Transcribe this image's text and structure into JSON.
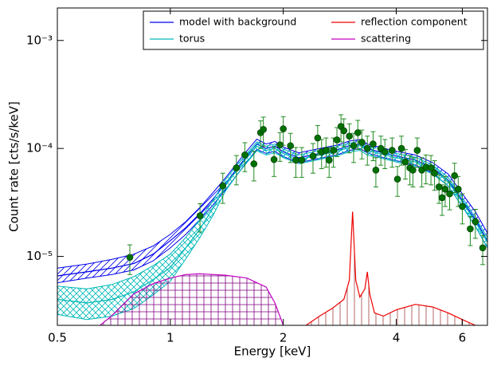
{
  "chart_data": {
    "type": "line",
    "xlabel": "Energy [keV]",
    "ylabel": "Count rate [cts/s/keV]",
    "xscale": "log",
    "yscale": "log",
    "xlim": [
      0.5,
      7
    ],
    "ylim": [
      2.3e-06,
      0.002
    ],
    "xticks": [
      0.5,
      1,
      2,
      4,
      6
    ],
    "yticks": [
      {
        "value": 1e-05,
        "label": "10⁻⁵"
      },
      {
        "value": 0.0001,
        "label": "10⁻⁴"
      },
      {
        "value": 0.001,
        "label": "10⁻³"
      }
    ],
    "legend": "upper right",
    "series": [
      {
        "name": "model with background",
        "color": "#0000ee",
        "hatch": "diagonal",
        "x": [
          0.5,
          0.6,
          0.7,
          0.8,
          0.9,
          1.0,
          1.1,
          1.2,
          1.3,
          1.4,
          1.5,
          1.6,
          1.7,
          1.8,
          1.9,
          2.0,
          2.2,
          2.5,
          2.8,
          3.0,
          3.2,
          3.35,
          3.6,
          4.0,
          4.5,
          5.0,
          5.5,
          6.0,
          6.5,
          7.0
        ],
        "values": [
          6.6e-06,
          7.2e-06,
          7.8e-06,
          8.6e-06,
          1.05e-05,
          1.4e-05,
          1.85e-05,
          2.5e-05,
          3.4e-05,
          4.7e-05,
          6.4e-05,
          8.5e-05,
          0.00011,
          0.0001,
          0.000105,
          9.3e-05,
          8.2e-05,
          9e-05,
          9.8e-05,
          0.000106,
          0.00011,
          0.0001,
          9.3e-05,
          8.5e-05,
          7.8e-05,
          6.6e-05,
          5.1e-05,
          3.3e-05,
          2.2e-05,
          1.4e-05
        ],
        "lower": [
          5.7e-06,
          6.3e-06,
          6.8e-06,
          7.5e-06,
          9.1e-06,
          1.2e-05,
          1.6e-05,
          2.2e-05,
          3e-05,
          4.1e-05,
          5.6e-05,
          7.5e-05,
          9.8e-05,
          9e-05,
          9.4e-05,
          8.4e-05,
          7.4e-05,
          8.1e-05,
          8.8e-05,
          9.6e-05,
          0.0001,
          9.1e-05,
          8.4e-05,
          7.7e-05,
          7e-05,
          5.9e-05,
          4.5e-05,
          2.9e-05,
          1.9e-05,
          1.2e-05
        ],
        "upper": [
          7.8e-06,
          8.5e-06,
          9.4e-06,
          1.05e-05,
          1.25e-05,
          1.6e-05,
          2.1e-05,
          2.85e-05,
          3.9e-05,
          5.3e-05,
          7.2e-05,
          9.5e-05,
          0.000122,
          0.00011,
          0.000116,
          0.000103,
          9.1e-05,
          0.0001,
          0.000108,
          0.000117,
          0.000121,
          0.00011,
          0.000103,
          9.4e-05,
          8.7e-05,
          7.4e-05,
          5.8e-05,
          3.8e-05,
          2.6e-05,
          1.65e-05
        ]
      },
      {
        "name": "torus",
        "color": "#00b8b8",
        "hatch": "cross",
        "x": [
          0.5,
          0.6,
          0.7,
          0.8,
          0.9,
          1.0,
          1.1,
          1.2,
          1.3,
          1.4,
          1.5,
          1.6,
          1.7,
          1.8,
          1.9,
          2.0,
          2.2,
          2.5,
          2.8,
          3.0,
          3.2,
          3.35,
          3.6,
          4.0,
          4.5,
          5.0,
          5.5,
          6.0,
          6.5,
          7.0
        ],
        "values": [
          4e-06,
          3.7e-06,
          4e-06,
          4.7e-06,
          6.1e-06,
          7.9e-06,
          1.2e-05,
          1.8e-05,
          2.8e-05,
          4.5e-05,
          6.2e-05,
          8.2e-05,
          0.000105,
          9.6e-05,
          0.0001,
          9e-05,
          7.9e-05,
          8.7e-05,
          9.5e-05,
          0.000102,
          0.000106,
          9.6e-05,
          9e-05,
          8.2e-05,
          7.5e-05,
          6.4e-05,
          4.9e-05,
          3.2e-05,
          2.1e-05,
          1.35e-05
        ],
        "lower": [
          2.9e-06,
          2.6e-06,
          2.8e-06,
          3.3e-06,
          4.4e-06,
          5.9e-06,
          9.5e-06,
          1.5e-05,
          2.4e-05,
          4e-05,
          5.6e-05,
          7.4e-05,
          9.5e-05,
          8.7e-05,
          9.1e-05,
          8.2e-05,
          7.2e-05,
          7.9e-05,
          8.6e-05,
          9.3e-05,
          9.6e-05,
          8.7e-05,
          8.2e-05,
          7.5e-05,
          6.8e-05,
          5.8e-05,
          4.5e-05,
          2.9e-05,
          1.9e-05,
          1.2e-05
        ],
        "upper": [
          5.3e-06,
          5e-06,
          5.5e-06,
          6.5e-06,
          8.2e-06,
          1.05e-05,
          1.5e-05,
          2.2e-05,
          3.3e-05,
          5.1e-05,
          6.9e-05,
          9e-05,
          0.000115,
          0.000105,
          0.00011,
          9.9e-05,
          8.7e-05,
          9.6e-05,
          0.000105,
          0.000112,
          0.000116,
          0.000105,
          9.9e-05,
          9e-05,
          8.3e-05,
          7e-05,
          5.4e-05,
          3.5e-05,
          2.3e-05,
          1.5e-05
        ]
      },
      {
        "name": "reflection component",
        "color": "#ee0000",
        "hatch": "vertical",
        "x": [
          2.3,
          2.5,
          2.7,
          2.9,
          3.0,
          3.06,
          3.12,
          3.2,
          3.3,
          3.35,
          3.4,
          3.5,
          3.7,
          4.0,
          4.5,
          5.0,
          5.5,
          6.0,
          6.5
        ],
        "values": [
          2.3e-06,
          2.8e-06,
          3.3e-06,
          4e-06,
          6e-06,
          2.6e-05,
          6e-06,
          4.2e-06,
          5e-06,
          7.2e-06,
          4.5e-06,
          3e-06,
          2.8e-06,
          3.2e-06,
          3.6e-06,
          3.4e-06,
          3e-06,
          2.6e-06,
          2.3e-06
        ]
      },
      {
        "name": "scattering",
        "color": "#c000c0",
        "hatch": "grid",
        "x": [
          0.65,
          0.7,
          0.8,
          0.9,
          1.0,
          1.1,
          1.2,
          1.4,
          1.6,
          1.8,
          1.9,
          2.0
        ],
        "values": [
          2.3e-06,
          2.84e-06,
          4.5e-06,
          5.6e-06,
          6.3e-06,
          6.8e-06,
          6.9e-06,
          6.7e-06,
          6.3e-06,
          5.2e-06,
          3.7e-06,
          2.3e-06
        ]
      }
    ],
    "points": {
      "color": "#007000",
      "x": [
        0.78,
        1.2,
        1.38,
        1.5,
        1.58,
        1.67,
        1.74,
        1.77,
        1.89,
        1.96,
        2.0,
        2.09,
        2.16,
        2.24,
        2.4,
        2.47,
        2.53,
        2.6,
        2.65,
        2.72,
        2.78,
        2.85,
        2.9,
        3.0,
        3.08,
        3.16,
        3.24,
        3.35,
        3.47,
        3.53,
        3.64,
        3.73,
        3.9,
        4.03,
        4.13,
        4.23,
        4.35,
        4.43,
        4.55,
        4.68,
        4.8,
        4.95,
        5.06,
        5.2,
        5.3,
        5.4,
        5.55,
        5.72,
        5.85,
        6.0,
        6.3,
        6.5,
        6.8
      ],
      "values": [
        9.8e-06,
        2.38e-05,
        4.5e-05,
        6.6e-05,
        8.7e-05,
        7.2e-05,
        0.00014,
        0.00015,
        7.9e-05,
        0.000108,
        0.000152,
        0.000106,
        7.8e-05,
        7.8e-05,
        8.5e-05,
        0.000125,
        9.3e-05,
        9.6e-05,
        7.8e-05,
        9.6e-05,
        0.00012,
        0.00016,
        0.000146,
        0.00013,
        0.000106,
        0.00014,
        0.000114,
        0.0001,
        0.00011,
        6.3e-05,
        0.0001,
        9.3e-05,
        9.6e-05,
        5.2e-05,
        0.0001,
        7.5e-05,
        6.6e-05,
        6.3e-05,
        9.6e-05,
        6.3e-05,
        6.7e-05,
        6.6e-05,
        5.9e-05,
        4.4e-05,
        3.5e-05,
        4.2e-05,
        3.8e-05,
        5.6e-05,
        4.2e-05,
        2.9e-05,
        1.8e-05,
        2.1e-05,
        1.2e-05
      ],
      "yerr": [
        3e-06,
        7e-06,
        1.4e-05,
        2e-05,
        2.6e-05,
        2.2e-05,
        4e-05,
        4.5e-05,
        2.4e-05,
        3.2e-05,
        4.5e-05,
        3.2e-05,
        2.4e-05,
        2.4e-05,
        2.6e-05,
        3.8e-05,
        2.8e-05,
        2.9e-05,
        2.4e-05,
        2.9e-05,
        3.6e-05,
        4.5e-05,
        4.2e-05,
        3.9e-05,
        3.2e-05,
        4.2e-05,
        3.4e-05,
        3e-05,
        3.3e-05,
        1.9e-05,
        3e-05,
        2.8e-05,
        2.9e-05,
        1.6e-05,
        3e-05,
        2.3e-05,
        2e-05,
        1.9e-05,
        2.9e-05,
        1.9e-05,
        2e-05,
        2e-05,
        1.8e-05,
        1.3e-05,
        1.1e-05,
        1.3e-05,
        1.1e-05,
        1.7e-05,
        1.3e-05,
        9e-06,
        5.4e-06,
        6.3e-06,
        3.6e-06
      ]
    }
  }
}
